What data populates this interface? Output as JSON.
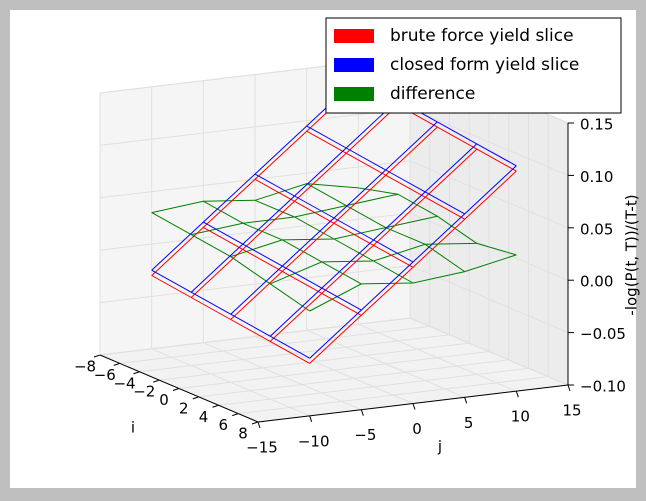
{
  "chart_data": {
    "type": "wireframe3d",
    "xlabel": "i",
    "ylabel": "j",
    "zlabel": "-log(P(t, T))/(T-t)",
    "xlim": [
      -8,
      8
    ],
    "xticks": [
      {
        "value": -8,
        "label": "−8"
      },
      {
        "value": -6,
        "label": "−6"
      },
      {
        "value": -4,
        "label": "−4"
      },
      {
        "value": -2,
        "label": "−2"
      },
      0,
      2,
      4,
      6,
      8
    ],
    "ylim": [
      -15,
      15
    ],
    "yticks": [
      {
        "value": -15,
        "label": "−15"
      },
      {
        "value": -10,
        "label": "−10"
      },
      {
        "value": -5,
        "label": "−5"
      },
      0,
      5,
      10,
      15
    ],
    "zlim": [
      -0.1,
      0.15
    ],
    "zticks": [
      {
        "value": -0.1,
        "label": "−0.10"
      },
      {
        "value": -0.05,
        "label": "−0.05"
      },
      {
        "value": 0,
        "label": "0.00"
      },
      {
        "value": 0.05,
        "label": "0.05"
      },
      {
        "value": 0.1,
        "label": "0.10"
      },
      0.15
    ],
    "grid": true,
    "legend": "upper right",
    "x": [
      -8,
      -4,
      0,
      4,
      8
    ],
    "y": [
      -10,
      -5,
      0,
      5,
      10
    ],
    "series": [
      {
        "name": "brute force yield slice",
        "color": "#ff0000",
        "values": [
          [
            -0.03,
            0.01,
            0.05,
            0.09,
            0.13
          ],
          [
            -0.035,
            0.005,
            0.045,
            0.085,
            0.125
          ],
          [
            -0.04,
            0.0,
            0.04,
            0.08,
            0.12
          ],
          [
            -0.045,
            -0.005,
            0.035,
            0.075,
            0.115
          ],
          [
            -0.05,
            -0.01,
            0.03,
            0.07,
            0.11
          ]
        ]
      },
      {
        "name": "closed form yield slice",
        "color": "#0000ff",
        "values": [
          [
            -0.025,
            0.015,
            0.055,
            0.095,
            0.135
          ],
          [
            -0.03,
            0.01,
            0.05,
            0.09,
            0.13
          ],
          [
            -0.035,
            0.005,
            0.045,
            0.085,
            0.125
          ],
          [
            -0.04,
            0.0,
            0.04,
            0.08,
            0.12
          ],
          [
            -0.045,
            -0.005,
            0.035,
            0.075,
            0.115
          ]
        ]
      },
      {
        "name": "difference",
        "color": "#008000",
        "values": [
          [
            0.03,
            0.035,
            0.03,
            0.04,
            0.03
          ],
          [
            0.025,
            0.03,
            0.03,
            0.035,
            0.04
          ],
          [
            0.02,
            0.03,
            0.025,
            0.03,
            0.035
          ],
          [
            0.01,
            0.025,
            0.02,
            0.03,
            0.025
          ],
          [
            0.0,
            0.02,
            0.015,
            0.02,
            0.03
          ]
        ]
      }
    ]
  }
}
